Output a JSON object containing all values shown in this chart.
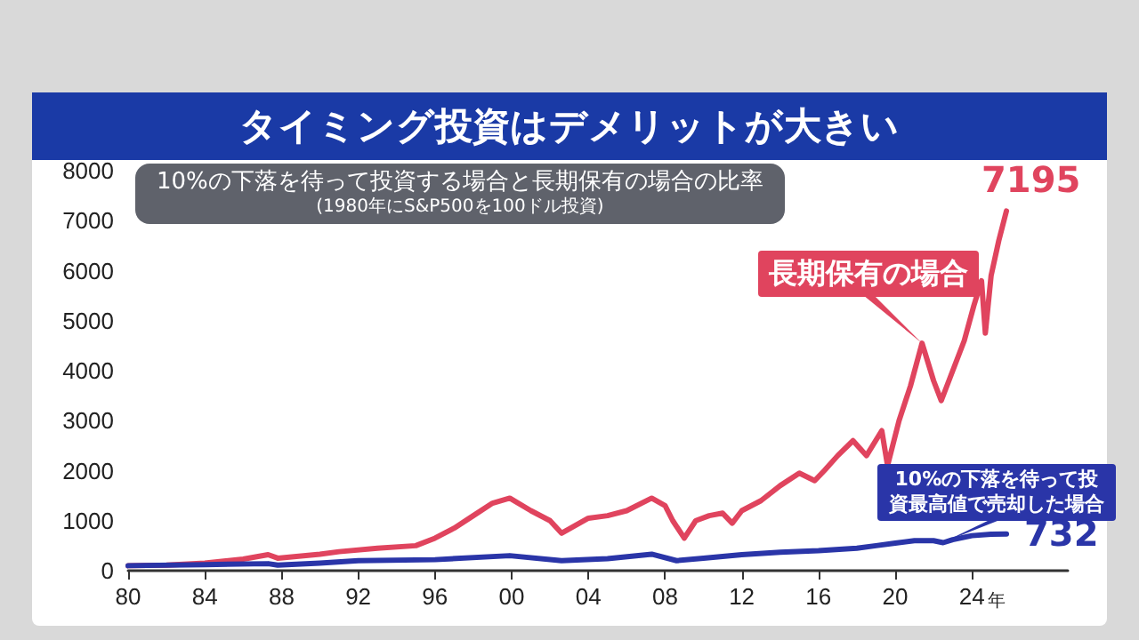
{
  "chart_data": {
    "type": "line",
    "title": "タイミング投資はデメリットが大きい",
    "subtitle": "10%の下落を待って投資する場合と長期保有の場合の比率",
    "annotations": [
      {
        "text": "長期保有の場合",
        "x": 2021.4,
        "y": 4550
      },
      {
        "text": "10%の下落を待って投資最高値で売却した場合",
        "x": 2022.5,
        "y": 560
      },
      {
        "text": "7195",
        "x": 2025.8,
        "y": 7195
      },
      {
        "text": "732",
        "x": 2025.8,
        "y": 732
      },
      "(1980年にS&P500を100ドル投資)"
    ],
    "series": [
      {
        "color": "#e0445e",
        "x": [
          1980,
          1982,
          1984,
          1986,
          1987.3,
          1987.8,
          1990,
          1991,
          1993,
          1995,
          1996,
          1997,
          1998,
          1999,
          1999.9,
          2001,
          2002,
          2002.6,
          2003.3,
          2004,
          2005,
          2006,
          2007.3,
          2008,
          2008.4,
          2009,
          2009.6,
          2010.3,
          2011,
          2011.5,
          2012,
          2013,
          2014,
          2015,
          2015.8,
          2016.3,
          2017,
          2017.8,
          2018.5,
          2019.3,
          2019.6,
          2020.2,
          2020.8,
          2021.4,
          2022,
          2022.4,
          2023,
          2023.6,
          2024.1,
          2024.5,
          2024.7,
          2025,
          2025.4,
          2025.8
        ],
        "values": [
          100,
          110,
          150,
          230,
          320,
          250,
          330,
          380,
          450,
          500,
          650,
          850,
          1100,
          1350,
          1450,
          1200,
          1000,
          750,
          900,
          1050,
          1100,
          1200,
          1450,
          1300,
          1000,
          650,
          1000,
          1100,
          1150,
          950,
          1200,
          1400,
          1700,
          1950,
          1800,
          2000,
          2300,
          2600,
          2300,
          2800,
          2100,
          3000,
          3700,
          4550,
          3800,
          3400,
          4000,
          4600,
          5300,
          5800,
          4750,
          5900,
          6600,
          7195
        ]
      },
      {
        "color": "#2a35a8",
        "x": [
          1980,
          1984,
          1987.3,
          1987.8,
          1990,
          1992,
          1996,
          1999.9,
          2002.6,
          2005,
          2007.3,
          2008.6,
          2010,
          2012,
          2014,
          2016,
          2018,
          2019,
          2020,
          2021,
          2022,
          2022.5,
          2023,
          2024,
          2025,
          2025.8
        ],
        "values": [
          100,
          120,
          140,
          110,
          150,
          200,
          220,
          300,
          200,
          240,
          330,
          200,
          250,
          320,
          370,
          400,
          450,
          500,
          550,
          600,
          600,
          560,
          620,
          700,
          730,
          732
        ]
      }
    ],
    "xlim": [
      1980,
      2029
    ],
    "xticks": [
      {
        "value": 1980,
        "label": "80"
      },
      {
        "value": 1984,
        "label": "84"
      },
      {
        "value": 1988,
        "label": "88"
      },
      {
        "value": 1992,
        "label": "92"
      },
      {
        "value": 1996,
        "label": "96"
      },
      {
        "value": 2000,
        "label": "00"
      },
      {
        "value": 2004,
        "label": "04"
      },
      {
        "value": 2008,
        "label": "08"
      },
      {
        "value": 2012,
        "label": "12"
      },
      {
        "value": 2016,
        "label": "16"
      },
      {
        "value": 2020,
        "label": "20"
      },
      {
        "value": 2024,
        "label": "24"
      }
    ],
    "xlabel": "年",
    "ylim": [
      0,
      8000
    ],
    "yticks": [
      0,
      1000,
      2000,
      3000,
      4000,
      5000,
      6000,
      7000,
      8000
    ],
    "grid": false,
    "marker": "none",
    "line_style": "solid"
  }
}
